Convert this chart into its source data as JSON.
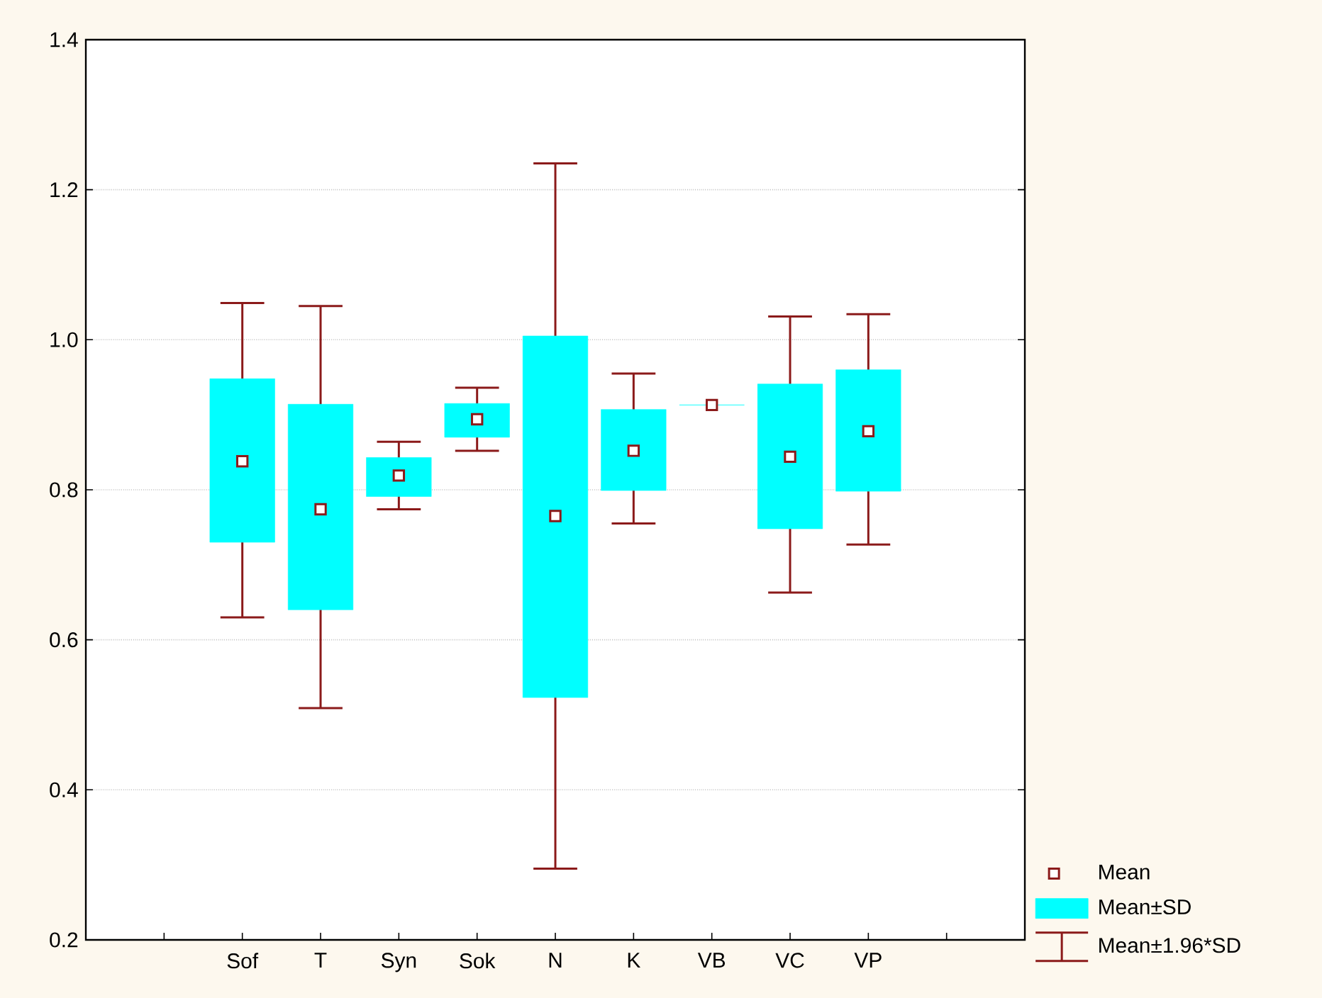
{
  "chart_data": {
    "type": "box",
    "categories": [
      null,
      "Sof",
      "T",
      "Syn",
      "Sok",
      "N",
      "K",
      "VB",
      "VC",
      "VP",
      null
    ],
    "ylim": [
      0.2,
      1.4
    ],
    "yticks": [
      {
        "value": 0.2,
        "label": "0.2"
      },
      {
        "value": 0.4,
        "label": "0.4"
      },
      {
        "value": 0.6,
        "label": "0.6"
      },
      {
        "value": 0.8,
        "label": "0.8"
      },
      {
        "value": 1.0,
        "label": "1.0"
      },
      {
        "value": 1.2,
        "label": "1.2"
      },
      {
        "value": 1.4,
        "label": "1.4"
      }
    ],
    "grid": "y",
    "marker": "square",
    "color": "#00ffff",
    "annotations": [
      "Mean",
      "Mean±SD",
      "Mean±1.96*SD"
    ],
    "boxes": [
      null,
      {
        "low": 0.63,
        "q1": 0.73,
        "q3": 0.948,
        "high": 1.049,
        "mean": 0.838
      },
      {
        "low": 0.509,
        "q1": 0.64,
        "q3": 0.914,
        "high": 1.045,
        "mean": 0.774
      },
      {
        "low": 0.774,
        "q1": 0.791,
        "q3": 0.843,
        "high": 0.864,
        "mean": 0.819
      },
      {
        "low": 0.852,
        "q1": 0.87,
        "q3": 0.915,
        "high": 0.936,
        "mean": 0.894
      },
      {
        "low": 0.295,
        "q1": 0.523,
        "q3": 1.005,
        "high": 1.235,
        "mean": 0.765
      },
      {
        "low": 0.755,
        "q1": 0.799,
        "q3": 0.907,
        "high": 0.955,
        "mean": 0.852
      },
      {
        "low": 0.913,
        "q1": 0.913,
        "q3": 0.913,
        "high": 0.913,
        "mean": 0.913
      },
      {
        "low": 0.663,
        "q1": 0.748,
        "q3": 0.941,
        "high": 1.031,
        "mean": 0.844
      },
      {
        "low": 0.727,
        "q1": 0.798,
        "q3": 0.96,
        "high": 1.034,
        "mean": 0.878
      },
      null
    ]
  }
}
